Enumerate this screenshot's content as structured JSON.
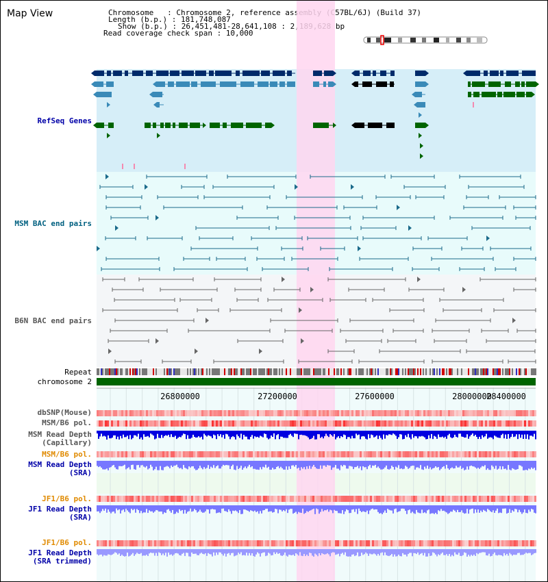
{
  "title": "Map View",
  "header": {
    "line1": "Chromosome   : Chromosome 2, reference assembly (C57BL/6J) (Build 37)",
    "line2": "Length (b.p.) : 181,748,087",
    "line3": "Show (b.p.) : 26,451,481-28,641,108 : 2,189,628 bp",
    "line4": "Read coverage check span : 10,000"
  },
  "tracks": {
    "refseq": "RefSeq Genes",
    "msm_bac": "MSM BAC end pairs",
    "b6n_bac": "B6N BAC end pairs",
    "repeat": "Repeat",
    "chromosome": "chromosome 2",
    "dbsnp": "dbSNP(Mouse)",
    "msm_b6_pol_1": "MSM/B6 pol.",
    "msm_depth_cap": "MSM Read Depth\n(Capillary)",
    "msm_b6_pol_2": "MSM/B6 pol.",
    "msm_depth_sra": "MSM Read Depth\n(SRA)",
    "jf1_b6_pol_1": "JF1/B6 pol.",
    "jf1_depth_sra": "JF1 Read Depth\n(SRA)",
    "jf1_b6_pol_2": "JF1/B6 pol.",
    "jf1_depth_trim": "JF1 Read Depth\n(SRA trimmed)"
  },
  "axis": {
    "ticks": [
      "26800000",
      "27200000",
      "27600000",
      "28000000",
      "28400000"
    ]
  },
  "colors": {
    "highlight": "#ffd6f0",
    "refseq_bg": "#d6eef8",
    "gene_dark": "#002a6a",
    "gene_mid": "#3a8ab8",
    "gene_green": "#006400",
    "bac_msm": "#1a6a8a",
    "bac_b6n": "#666666",
    "chromosome": "#006400",
    "depth_dark": "#0000e0",
    "depth_light": "#7777ff"
  }
}
